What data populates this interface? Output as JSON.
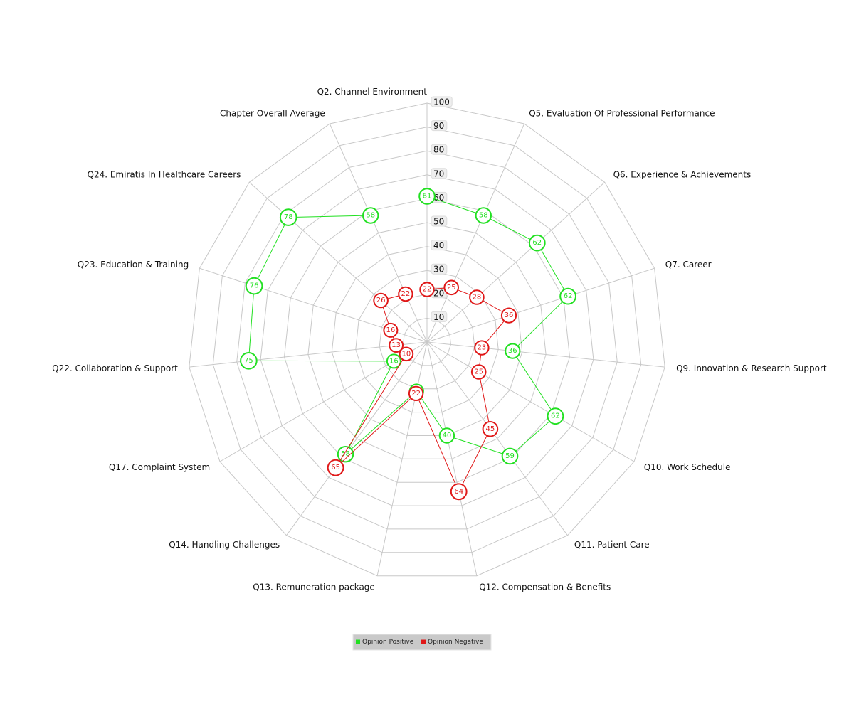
{
  "chart_data": {
    "type": "radar",
    "categories": [
      "Q2. Channel Environment",
      "Q5. Evaluation Of Professional Performance",
      "Q6. Experience & Achievements",
      "Q7. Career",
      "Q9. Innovation & Research Support",
      "Q10. Work Schedule",
      "Q11. Patient Care",
      "Q12. Compensation & Benefits",
      "Q13. Remuneration package",
      "Q14. Handling Challenges",
      "Q17. Complaint System",
      "Q22. Collaboration & Support",
      "Q23. Education & Training",
      "Q24. Emiratis In Healthcare Careers",
      "Chapter Overall Average"
    ],
    "radial_ticks": [
      10,
      20,
      30,
      40,
      50,
      60,
      70,
      80,
      90,
      100
    ],
    "rlim": [
      0,
      100
    ],
    "series": [
      {
        "name": "Opinion Positive",
        "color": "#22e022",
        "values": [
          61,
          58,
          62,
          62,
          36,
          62,
          59,
          40,
          21,
          58,
          16,
          75,
          76,
          78,
          58
        ]
      },
      {
        "name": "Opinion Negative",
        "color": "#e01818",
        "values": [
          22,
          25,
          28,
          36,
          23,
          25,
          45,
          64,
          22,
          65,
          10,
          13,
          16,
          26,
          22
        ]
      }
    ],
    "legend_position": "bottom-center",
    "grid": true
  }
}
